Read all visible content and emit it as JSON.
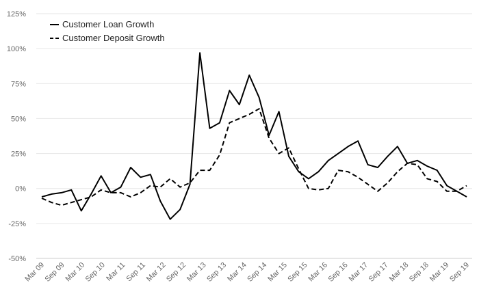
{
  "chart_data": {
    "type": "line",
    "title": "",
    "xlabel": "",
    "ylabel": "",
    "ylim": [
      -50,
      125
    ],
    "yticks": [
      -50,
      -25,
      0,
      25,
      50,
      75,
      100,
      125
    ],
    "ytick_labels": [
      "-50%",
      "-25%",
      "0%",
      "25%",
      "50%",
      "75%",
      "100%",
      "125%"
    ],
    "grid": "horizontal",
    "legend_position": "top-left",
    "x_labels": [
      "Mar 09",
      "Sep 09",
      "Mar 10",
      "Sep 10",
      "Mar 11",
      "Sep 11",
      "Mar 12",
      "Sep 12",
      "Mar 13",
      "Sep 13",
      "Mar 14",
      "Sep 14",
      "Mar 15",
      "Sep 15",
      "Mar 16",
      "Sep 16",
      "Mar 17",
      "Sep 17",
      "Mar 18",
      "Sep 18",
      "Mar 19",
      "Sep 19"
    ],
    "series": [
      {
        "name": "Customer Loan Growth",
        "style": "solid",
        "color": "#000000",
        "values": [
          -6,
          -4,
          -3,
          -1,
          -16,
          -4,
          9,
          -3,
          1,
          15,
          8,
          10,
          -9,
          -22,
          -15,
          3,
          97,
          43,
          47,
          70,
          60,
          81,
          65,
          38,
          55,
          23,
          12,
          7,
          12,
          20,
          25,
          30,
          34,
          17,
          15,
          23,
          30,
          18,
          20,
          16,
          13,
          2,
          -2,
          -6
        ]
      },
      {
        "name": "Customer Deposit Growth",
        "style": "dashed",
        "color": "#000000",
        "values": [
          -7,
          -10,
          -12,
          -10,
          -8,
          -6,
          -1,
          -3,
          -3,
          -6,
          -3,
          2,
          1,
          7,
          1,
          4,
          13,
          13,
          24,
          47,
          50,
          53,
          57,
          36,
          25,
          29,
          14,
          0,
          -1,
          0,
          13,
          12,
          8,
          3,
          -2,
          4,
          12,
          18,
          17,
          7,
          5,
          -2,
          -2,
          2
        ]
      }
    ]
  }
}
